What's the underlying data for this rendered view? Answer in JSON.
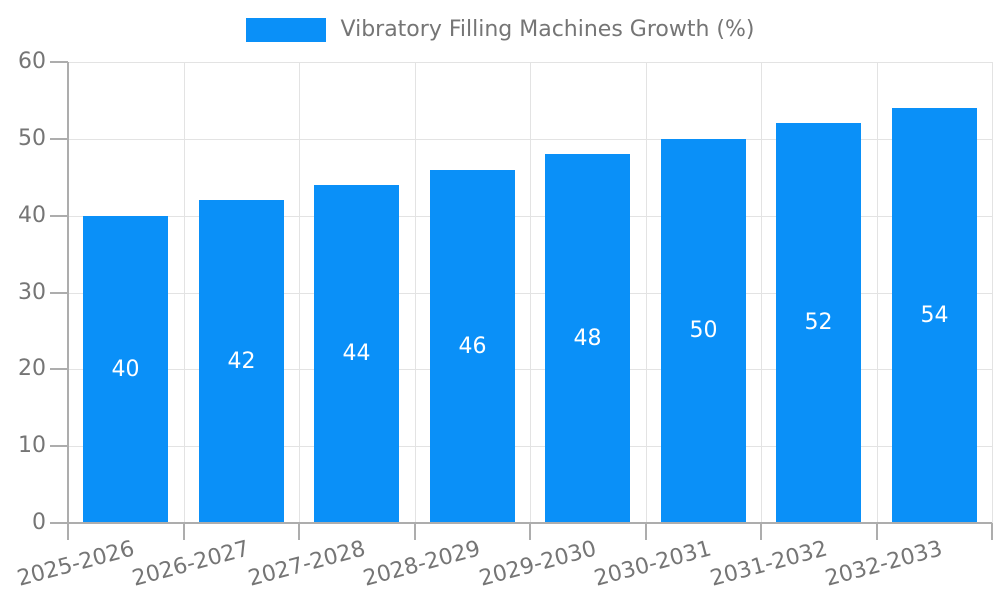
{
  "chart_data": {
    "type": "bar",
    "title": "Vibratory Filling Machines Growth (%)",
    "categories": [
      "2025-2026",
      "2026-2027",
      "2027-2028",
      "2028-2029",
      "2029-2030",
      "2030-2031",
      "2031-2032",
      "2032-2033"
    ],
    "series": [
      {
        "name": "Vibratory Filling Machines Growth (%)",
        "values": [
          40,
          42,
          44,
          46,
          48,
          50,
          52,
          54
        ]
      }
    ],
    "xlabel": "",
    "ylabel": "",
    "ylim": [
      0,
      60
    ],
    "yticks": [
      0,
      10,
      20,
      30,
      40,
      50,
      60
    ],
    "grid": true,
    "legend_position": "top",
    "x_label_rotation_deg": -15,
    "colors": {
      "bar": "#0A90F8",
      "value_label": "#FFFFFF",
      "axis": "#ADADAD",
      "grid": "#E3E3E3",
      "text": "#757575"
    }
  }
}
